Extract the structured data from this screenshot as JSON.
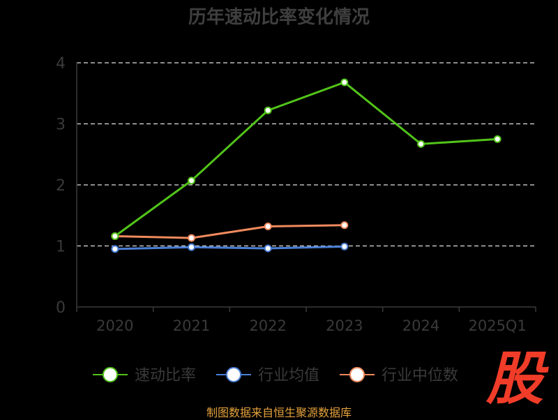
{
  "chart_data": {
    "type": "line",
    "title": "历年速动比率变化情况",
    "categories": [
      "2020",
      "2021",
      "2022",
      "2023",
      "2024",
      "2025Q1"
    ],
    "ylim": [
      0,
      4
    ],
    "yticks": [
      "0",
      "1",
      "2",
      "3",
      "4"
    ],
    "grid": true,
    "legend_position": "bottom",
    "series": [
      {
        "name": "速动比率",
        "color": "#52c41a",
        "values": [
          1.16,
          2.07,
          3.22,
          3.68,
          2.67,
          2.75
        ]
      },
      {
        "name": "行业均值",
        "color": "#4a7fd6",
        "values": [
          0.95,
          0.98,
          0.96,
          0.99,
          null,
          null
        ]
      },
      {
        "name": "行业中位数",
        "color": "#f08a5d",
        "values": [
          1.16,
          1.13,
          1.32,
          1.34,
          null,
          null
        ]
      }
    ]
  },
  "source_note": "制图数据来自恒生聚源数据库",
  "watermark": "股"
}
